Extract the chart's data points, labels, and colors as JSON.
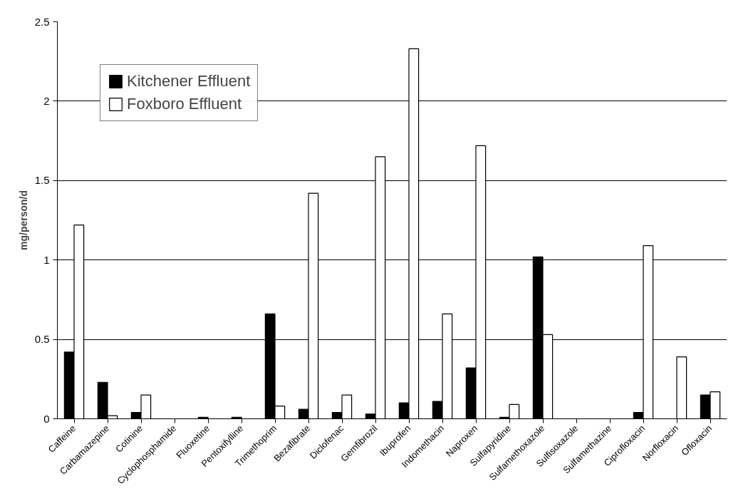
{
  "chart_data": {
    "type": "bar",
    "ylabel": "mg/person/d",
    "categories": [
      "Caffeine",
      "Carbamazepine",
      "Cotinine",
      "Cyclophosphamide",
      "Fluoxetine",
      "Pentoxifylline",
      "Trimethoprim",
      "Bezafibrate",
      "Diclofenac",
      "Gemfibrozil",
      "Ibuprofen",
      "Indomethacin",
      "Naproxen",
      "Sulfapyridine",
      "Sulfamethoxazole",
      "Sulfisoxazole",
      "Sulfamethazine",
      "Ciprofloxacin",
      "Norfloxacin",
      "Ofloxacin"
    ],
    "series": [
      {
        "name": "Kitchener Effluent",
        "color": "#000000",
        "values": [
          0.42,
          0.23,
          0.04,
          null,
          0.01,
          0.01,
          0.66,
          0.06,
          0.04,
          0.03,
          0.1,
          0.11,
          0.32,
          0.01,
          1.02,
          null,
          null,
          0.04,
          null,
          0.15
        ]
      },
      {
        "name": "Foxboro Effluent",
        "color": "#ffffff",
        "values": [
          1.22,
          0.02,
          0.15,
          null,
          null,
          null,
          0.08,
          1.42,
          0.15,
          1.65,
          2.33,
          0.66,
          1.72,
          0.09,
          0.53,
          null,
          null,
          1.09,
          0.39,
          0.17
        ]
      }
    ],
    "ylim": [
      0,
      2.5
    ],
    "yticks": [
      0,
      0.5,
      1,
      1.5,
      2,
      2.5
    ],
    "grid": "y",
    "legend": "top left"
  }
}
